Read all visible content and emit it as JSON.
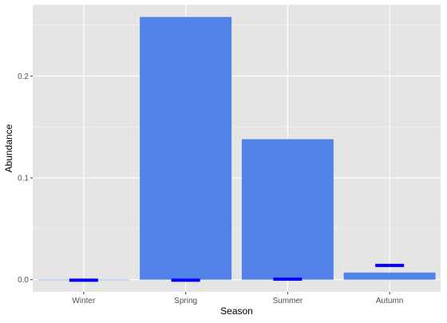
{
  "chart_data": {
    "type": "bar",
    "title": "",
    "xlabel": "Season",
    "ylabel": "Abundance",
    "categories": [
      "Winter",
      "Spring",
      "Summer",
      "Autumn"
    ],
    "values": [
      0.0,
      0.258,
      0.138,
      0.007
    ],
    "markers": [
      -0.0005,
      -0.0005,
      0.0005,
      0.014
    ],
    "ylim": [
      -0.012,
      0.27
    ],
    "yticks": [
      0.0,
      0.1,
      0.2
    ],
    "ytick_labels": [
      "0.0",
      "0.1",
      "0.2"
    ],
    "grid": true,
    "legend": "none",
    "colors": {
      "panel": "#e5e5e5",
      "grid_major": "#ffffff",
      "bar": "#5282e8",
      "marker": "#0000ff",
      "tick": "#333333"
    }
  }
}
